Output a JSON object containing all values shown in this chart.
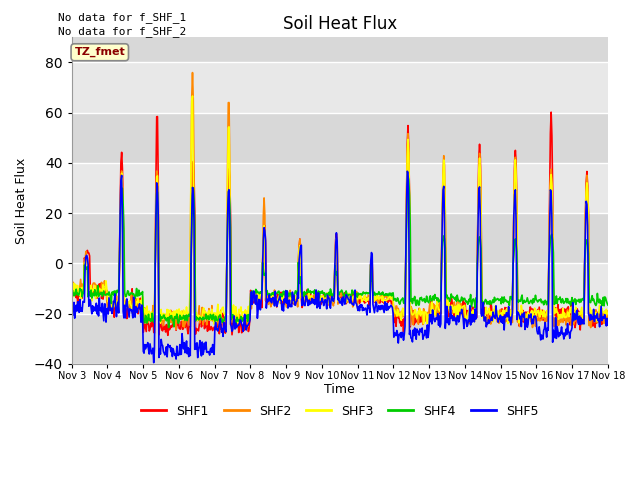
{
  "title": "Soil Heat Flux",
  "ylabel": "Soil Heat Flux",
  "xlabel": "Time",
  "ylim": [
    -40,
    90
  ],
  "yticks": [
    -40,
    -20,
    0,
    20,
    40,
    60,
    80
  ],
  "annotation_lines": [
    "No data for f_SHF_1",
    "No data for f_SHF_2"
  ],
  "legend_label": "TZ_fmet",
  "series_names": [
    "SHF1",
    "SHF2",
    "SHF3",
    "SHF4",
    "SHF5"
  ],
  "series_colors": [
    "#ff0000",
    "#ff8800",
    "#ffff00",
    "#00cc00",
    "#0000ff"
  ],
  "xtick_labels": [
    "Nov 3",
    "Nov 4",
    "Nov 5",
    "Nov 6",
    "Nov 7",
    "Nov 8",
    "Nov 9",
    "Nov 10",
    "Nov 11",
    "Nov 12",
    "Nov 13",
    "Nov 14",
    "Nov 15",
    "Nov 16",
    "Nov 17",
    "Nov 18"
  ],
  "background_color": "#e8e8e8",
  "n_points": 720,
  "days": 15
}
